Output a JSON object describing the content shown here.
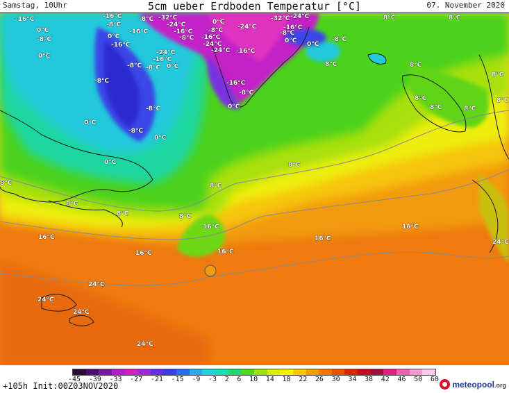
{
  "header": {
    "left": "Samstag, 10Uhr",
    "title": "5cm ueber Erdboden Temperatur [°C]",
    "right": "07. November 2020"
  },
  "map_labels": [
    {
      "text": "-16°C"
    },
    {
      "text": "0°C"
    },
    {
      "text": "-8°C"
    },
    {
      "text": "0°C"
    },
    {
      "text": "-16°C"
    },
    {
      "text": "-8°C"
    },
    {
      "text": "-16°C"
    },
    {
      "text": "0°C"
    },
    {
      "text": "-16°C"
    },
    {
      "text": "-8°C"
    },
    {
      "text": "-32°C"
    },
    {
      "text": "-24°C"
    },
    {
      "text": "-16°C"
    },
    {
      "text": "-8°C"
    },
    {
      "text": "-24°C"
    },
    {
      "text": "-16°C"
    },
    {
      "text": "-8°C"
    },
    {
      "text": "-8°C"
    },
    {
      "text": "0°C"
    },
    {
      "text": "0°C"
    },
    {
      "text": "-8°C"
    },
    {
      "text": "-16°C"
    },
    {
      "text": "-24°C"
    },
    {
      "text": "-24°C"
    },
    {
      "text": "-24°C"
    },
    {
      "text": "-32°C"
    },
    {
      "text": "-24°C"
    },
    {
      "text": "-16°C"
    },
    {
      "text": "-8°C"
    },
    {
      "text": "0°C"
    },
    {
      "text": "0°C"
    },
    {
      "text": "-8°C"
    },
    {
      "text": "8°C"
    },
    {
      "text": "8°C"
    },
    {
      "text": "-16°C"
    },
    {
      "text": "-8°C"
    },
    {
      "text": "0°C"
    },
    {
      "text": "-8°C"
    },
    {
      "text": "-16°C"
    },
    {
      "text": "-8°C"
    },
    {
      "text": "0°C"
    },
    {
      "text": "-8°C"
    },
    {
      "text": "0°C"
    },
    {
      "text": "-8°C"
    },
    {
      "text": "0°C"
    },
    {
      "text": "8°C"
    },
    {
      "text": "8°C"
    },
    {
      "text": "8°C"
    },
    {
      "text": "8°C"
    },
    {
      "text": "8°C"
    },
    {
      "text": "8°C"
    },
    {
      "text": "8°C"
    },
    {
      "text": "8°C"
    },
    {
      "text": "8°C"
    },
    {
      "text": "8°C"
    },
    {
      "text": "8°C"
    },
    {
      "text": "8°C"
    },
    {
      "text": "8°C"
    },
    {
      "text": "16°C"
    },
    {
      "text": "16°C"
    },
    {
      "text": "16°C"
    },
    {
      "text": "16°C"
    },
    {
      "text": "16°C"
    },
    {
      "text": "16°C"
    },
    {
      "text": "24°C"
    },
    {
      "text": "24°C"
    },
    {
      "text": "24°C"
    },
    {
      "text": "24°C"
    },
    {
      "text": "24°C"
    }
  ],
  "colorbar": {
    "ticks": [
      "-45",
      "-39",
      "-33",
      "-27",
      "-21",
      "-15",
      "-9",
      "-3",
      "2",
      "6",
      "10",
      "14",
      "18",
      "22",
      "26",
      "30",
      "34",
      "38",
      "42",
      "46",
      "50",
      "60"
    ],
    "colors": [
      "#2a0a3a",
      "#4b0f6b",
      "#7a1aa0",
      "#b01fc7",
      "#d020c0",
      "#a02ad6",
      "#6a2ee0",
      "#3a3ee8",
      "#2a6cf0",
      "#2aa8f0",
      "#22d0e0",
      "#18e0b0",
      "#20d870",
      "#50d820",
      "#98e010",
      "#d8ee08",
      "#f8f000",
      "#f8c800",
      "#f0a000",
      "#f07800",
      "#e85000",
      "#d82800",
      "#c01020",
      "#a0103a",
      "#e02080",
      "#f060b0",
      "#f898d0",
      "#fcc8e8"
    ]
  },
  "footer": {
    "left": "+105h Init:00Z03NOV2020",
    "brand": "meteopool",
    "brand_domain": ".org"
  }
}
